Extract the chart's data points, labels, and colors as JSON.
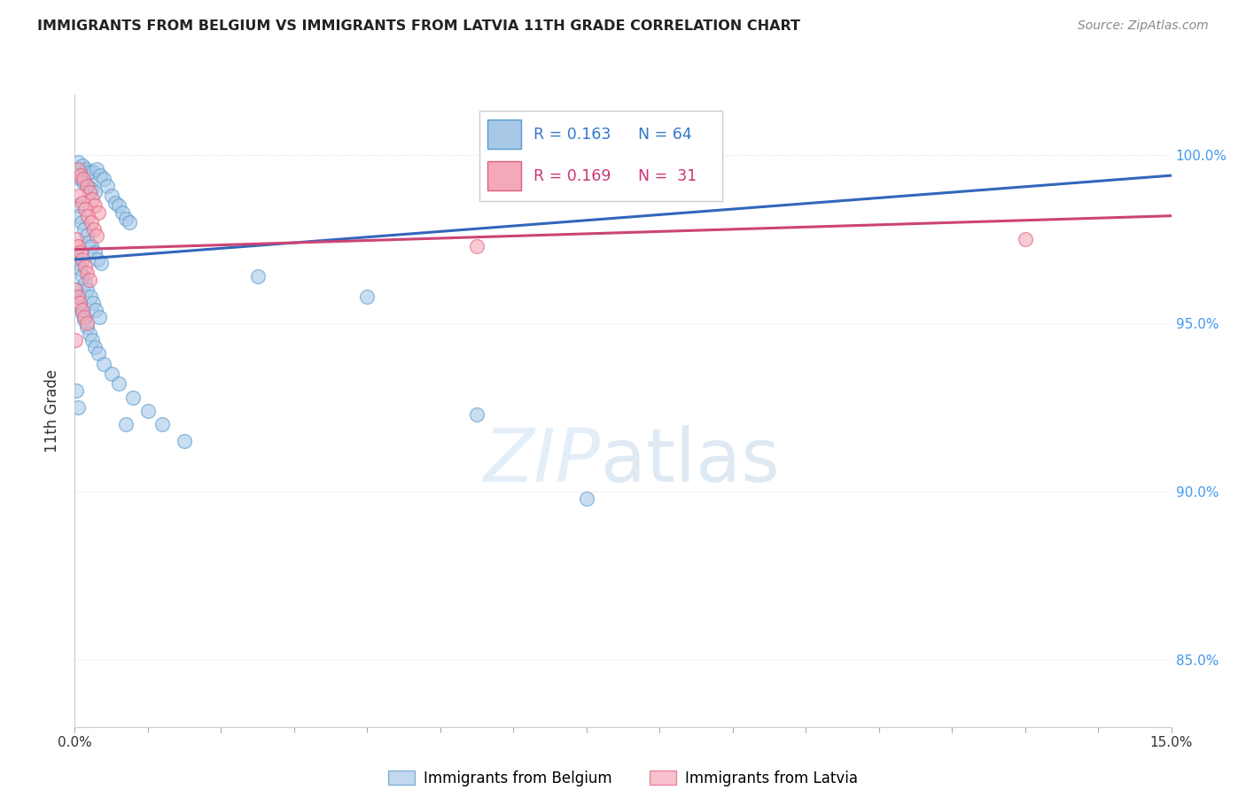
{
  "title": "IMMIGRANTS FROM BELGIUM VS IMMIGRANTS FROM LATVIA 11TH GRADE CORRELATION CHART",
  "source": "Source: ZipAtlas.com",
  "ylabel": "11th Grade",
  "x_range": [
    0.0,
    15.0
  ],
  "y_range": [
    83.0,
    101.8
  ],
  "y_ticks": [
    85.0,
    90.0,
    95.0,
    100.0
  ],
  "legend_blue_r": "R = 0.163",
  "legend_blue_n": "N = 64",
  "legend_pink_r": "R = 0.169",
  "legend_pink_n": "N =  31",
  "legend_label_blue": "Immigrants from Belgium",
  "legend_label_pink": "Immigrants from Latvia",
  "blue_color": "#a8c8e8",
  "pink_color": "#f4a8b8",
  "blue_edge_color": "#5599cc",
  "pink_edge_color": "#e06080",
  "blue_line_color": "#3366bb",
  "pink_line_color": "#cc4477",
  "legend_text_blue": "#3377cc",
  "legend_text_pink": "#cc3377",
  "blue_line_x0": 0.0,
  "blue_line_y0": 96.9,
  "blue_line_x1": 15.0,
  "blue_line_y1": 99.4,
  "pink_line_x0": 0.0,
  "pink_line_y0": 97.2,
  "pink_line_x1": 15.0,
  "pink_line_y1": 98.2,
  "blue_scatter": [
    [
      0.05,
      99.8
    ],
    [
      0.1,
      99.7
    ],
    [
      0.15,
      99.6
    ],
    [
      0.2,
      99.5
    ],
    [
      0.25,
      99.5
    ],
    [
      0.08,
      99.3
    ],
    [
      0.12,
      99.2
    ],
    [
      0.18,
      99.1
    ],
    [
      0.22,
      99.0
    ],
    [
      0.28,
      98.9
    ],
    [
      0.3,
      99.6
    ],
    [
      0.35,
      99.4
    ],
    [
      0.4,
      99.3
    ],
    [
      0.45,
      99.1
    ],
    [
      0.5,
      98.8
    ],
    [
      0.55,
      98.6
    ],
    [
      0.6,
      98.5
    ],
    [
      0.65,
      98.3
    ],
    [
      0.7,
      98.1
    ],
    [
      0.75,
      98.0
    ],
    [
      0.03,
      98.5
    ],
    [
      0.06,
      98.2
    ],
    [
      0.09,
      98.0
    ],
    [
      0.13,
      97.8
    ],
    [
      0.16,
      97.6
    ],
    [
      0.19,
      97.4
    ],
    [
      0.23,
      97.3
    ],
    [
      0.27,
      97.1
    ],
    [
      0.31,
      96.9
    ],
    [
      0.36,
      96.8
    ],
    [
      0.02,
      97.0
    ],
    [
      0.05,
      96.8
    ],
    [
      0.08,
      96.6
    ],
    [
      0.11,
      96.4
    ],
    [
      0.14,
      96.2
    ],
    [
      0.17,
      96.0
    ],
    [
      0.21,
      95.8
    ],
    [
      0.25,
      95.6
    ],
    [
      0.29,
      95.4
    ],
    [
      0.33,
      95.2
    ],
    [
      0.01,
      96.0
    ],
    [
      0.04,
      95.8
    ],
    [
      0.07,
      95.5
    ],
    [
      0.1,
      95.3
    ],
    [
      0.13,
      95.1
    ],
    [
      0.16,
      94.9
    ],
    [
      0.2,
      94.7
    ],
    [
      0.24,
      94.5
    ],
    [
      0.28,
      94.3
    ],
    [
      0.32,
      94.1
    ],
    [
      0.4,
      93.8
    ],
    [
      0.5,
      93.5
    ],
    [
      0.6,
      93.2
    ],
    [
      0.8,
      92.8
    ],
    [
      1.0,
      92.4
    ],
    [
      1.2,
      92.0
    ],
    [
      1.5,
      91.5
    ],
    [
      0.02,
      93.0
    ],
    [
      0.05,
      92.5
    ],
    [
      0.7,
      92.0
    ],
    [
      2.5,
      96.4
    ],
    [
      4.0,
      95.8
    ],
    [
      5.5,
      92.3
    ],
    [
      7.0,
      89.8
    ]
  ],
  "pink_scatter": [
    [
      0.04,
      99.6
    ],
    [
      0.08,
      99.4
    ],
    [
      0.12,
      99.3
    ],
    [
      0.16,
      99.1
    ],
    [
      0.2,
      98.9
    ],
    [
      0.24,
      98.7
    ],
    [
      0.28,
      98.5
    ],
    [
      0.32,
      98.3
    ],
    [
      0.06,
      98.8
    ],
    [
      0.1,
      98.6
    ],
    [
      0.14,
      98.4
    ],
    [
      0.18,
      98.2
    ],
    [
      0.22,
      98.0
    ],
    [
      0.26,
      97.8
    ],
    [
      0.3,
      97.6
    ],
    [
      0.02,
      97.5
    ],
    [
      0.05,
      97.3
    ],
    [
      0.08,
      97.1
    ],
    [
      0.11,
      96.9
    ],
    [
      0.14,
      96.7
    ],
    [
      0.17,
      96.5
    ],
    [
      0.2,
      96.3
    ],
    [
      0.01,
      96.0
    ],
    [
      0.04,
      95.8
    ],
    [
      0.07,
      95.6
    ],
    [
      0.1,
      95.4
    ],
    [
      0.13,
      95.2
    ],
    [
      0.16,
      95.0
    ],
    [
      0.01,
      94.5
    ],
    [
      5.5,
      97.3
    ],
    [
      13.0,
      97.5
    ]
  ],
  "grid_color": "#dddddd",
  "background_color": "#ffffff",
  "watermark_zip_color": "#cce0f5",
  "watermark_atlas_color": "#b0c8e0"
}
